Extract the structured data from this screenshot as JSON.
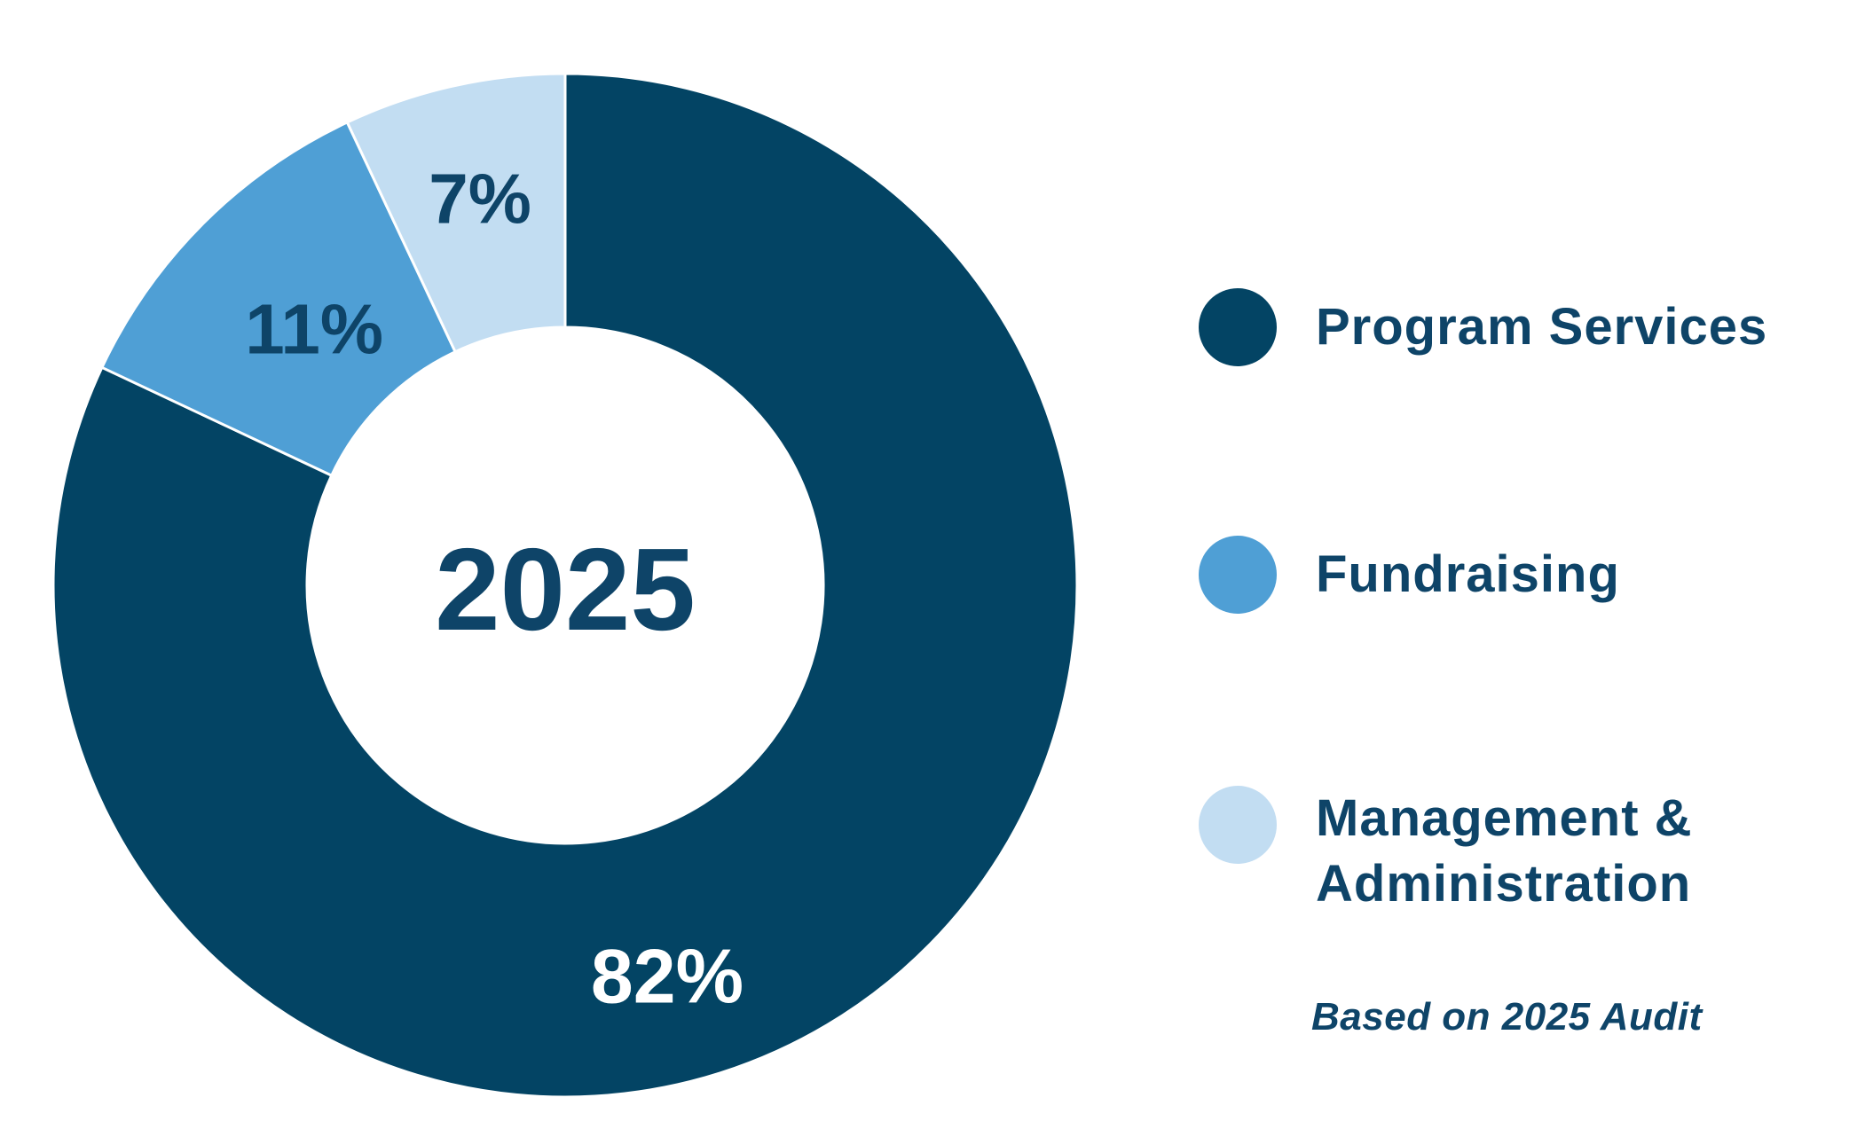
{
  "chart_data": {
    "type": "pie",
    "center_label": "2025",
    "categories": [
      "Program Services",
      "Fundraising",
      "Management & Administration"
    ],
    "values": [
      82,
      11,
      7
    ],
    "value_labels": [
      "82%",
      "11%",
      "7%"
    ],
    "colors": [
      "#034464",
      "#4f9fd5",
      "#c2ddf2"
    ],
    "label_colors": [
      "#ffffff",
      "#0e4468",
      "#0e4468"
    ],
    "legend_position": "right",
    "note": "Based on 2025 Audit"
  },
  "legend": {
    "items": [
      {
        "label": "Program Services",
        "color": "#034464"
      },
      {
        "label": "Fundraising",
        "color": "#4f9fd5"
      },
      {
        "label": "Management &\nAdministration",
        "color": "#c2ddf2"
      }
    ]
  }
}
